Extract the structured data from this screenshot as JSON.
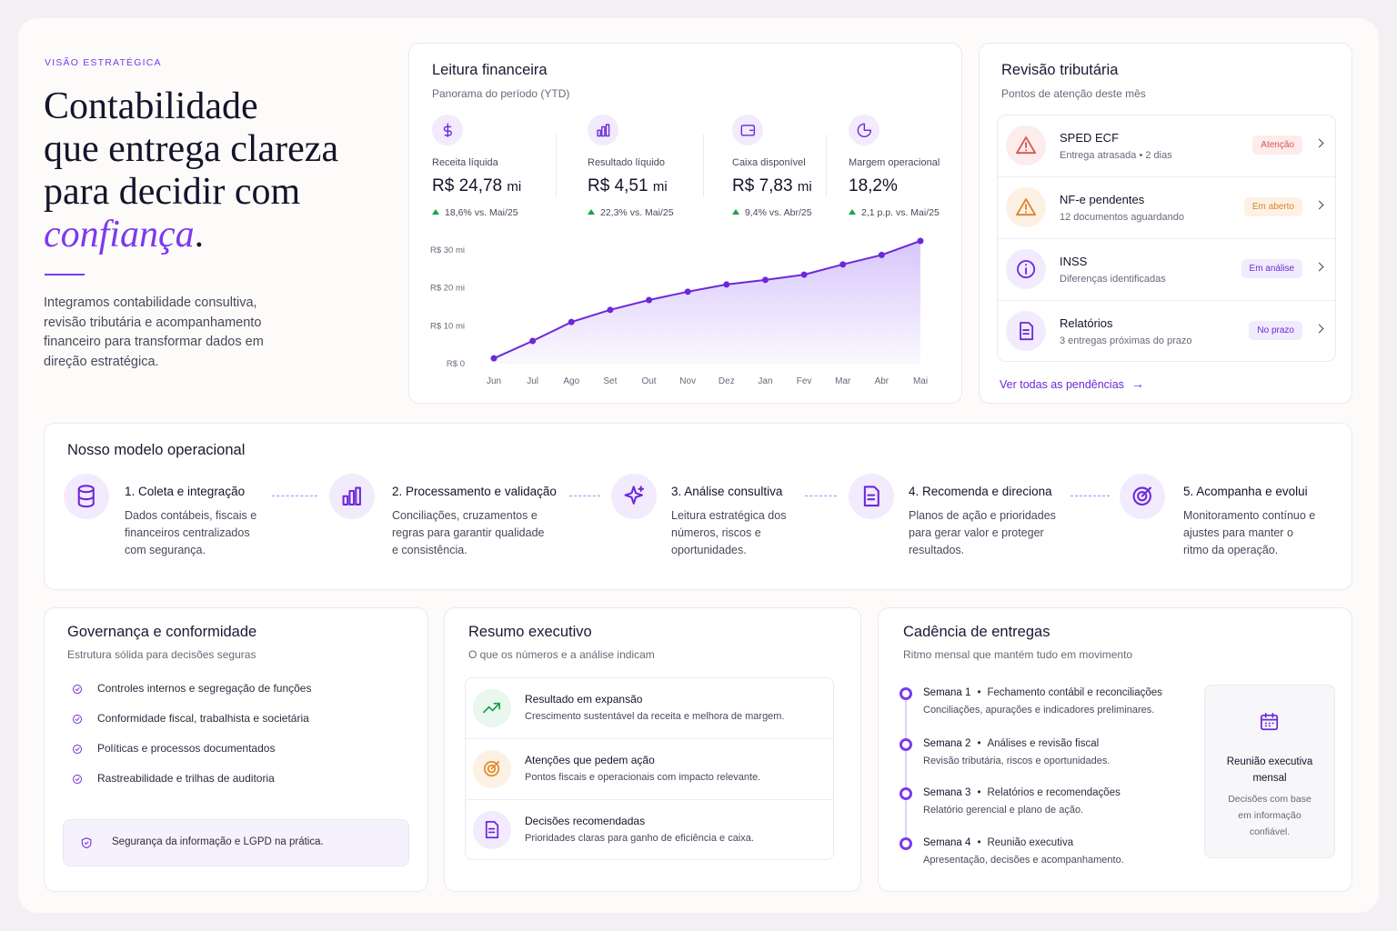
{
  "hero": {
    "kicker": "VISÃO ESTRATÉGICA",
    "title_lines": [
      "Contabilidade",
      "que entrega clareza",
      "para decidir com"
    ],
    "title_accent": "confiança",
    "title_end": ".",
    "body": "Integramos contabilidade consultiva, revisão tributária e acompanhamento financeiro para transformar dados em direção estratégica."
  },
  "finance": {
    "title": "Leitura financeira",
    "subtitle": "Panorama do período (YTD)",
    "kpis": [
      {
        "label": "Receita líquida",
        "value": "R$ 24,78",
        "unit": "mi",
        "delta": "18,6% vs. Mai/25"
      },
      {
        "label": "Resultado líquido",
        "value": "R$ 4,51",
        "unit": "mi",
        "delta": "22,3% vs. Mai/25"
      },
      {
        "label": "Caixa disponível",
        "value": "R$ 7,83",
        "unit": "mi",
        "delta": "9,4% vs. Abr/25"
      },
      {
        "label": "Margem operacional",
        "value": "18,2%",
        "unit": null,
        "delta": "2,1 p.p. vs. Mai/25"
      }
    ]
  },
  "chart_data": {
    "type": "line",
    "color": "#6d28d9",
    "categories": [
      "Jun",
      "Jul",
      "Ago",
      "Set",
      "Out",
      "Nov",
      "Dez",
      "Jan",
      "Fev",
      "Mar",
      "Abr",
      "Mai"
    ],
    "values": [
      1.4,
      6,
      11,
      14.2,
      16.8,
      19,
      20.9,
      22.1,
      23.5,
      26.2,
      28.7,
      32.4
    ],
    "ylim": [
      0,
      33
    ],
    "yticks": [
      {
        "value": 0,
        "label": "R$ 0"
      },
      {
        "value": 10,
        "label": "R$ 10 mi"
      },
      {
        "value": 20,
        "label": "R$ 20 mi"
      },
      {
        "value": 30,
        "label": "R$ 30 mi"
      }
    ],
    "area": true,
    "grid": false
  },
  "tax": {
    "title": "Revisão tributária",
    "subtitle": "Pontos de atenção deste mês",
    "items": [
      {
        "title": "SPED ECF",
        "detail": "Entrega atrasada • 2 dias",
        "status": "Atenção"
      },
      {
        "title": "NF-e pendentes",
        "detail": "12 documentos aguardando",
        "status": "Em aberto"
      },
      {
        "title": "INSS",
        "detail": "Diferenças identificadas",
        "status": "Em análise"
      },
      {
        "title": "Relatórios",
        "detail": "3 entregas próximas do prazo",
        "status": "No prazo"
      }
    ],
    "link": "Ver todas as pendências"
  },
  "model": {
    "title": "Nosso modelo operacional",
    "steps": [
      {
        "title": "1. Coleta e integração",
        "body": "Dados contábeis, fiscais e financeiros centralizados com segurança."
      },
      {
        "title": "2. Processamento e validação",
        "body": "Conciliações, cruzamentos e regras para garantir qualidade e consistência."
      },
      {
        "title": "3. Análise consultiva",
        "body": "Leitura estratégica dos números, riscos e oportunidades."
      },
      {
        "title": "4. Recomenda e direciona",
        "body": "Planos de ação e prioridades para gerar valor e proteger resultados."
      },
      {
        "title": "5. Acompanha e evolui",
        "body": "Monitoramento contínuo e ajustes para manter o ritmo da operação."
      }
    ]
  },
  "governance": {
    "title": "Governança e conformidade",
    "subtitle": "Estrutura sólida para decisões seguras",
    "items": [
      "Controles internos e segregação de funções",
      "Conformidade fiscal, trabalhista e societária",
      "Políticas e processos documentados",
      "Rastreabilidade e trilhas de auditoria"
    ],
    "note": "Segurança da informação e LGPD na prática."
  },
  "summary": {
    "title": "Resumo executivo",
    "subtitle": "O que os números e a análise indicam",
    "items": [
      {
        "title": "Resultado em expansão",
        "detail": "Crescimento sustentável da receita e melhora de margem."
      },
      {
        "title": "Atenções que pedem ação",
        "detail": "Pontos fiscais e operacionais com impacto relevante."
      },
      {
        "title": "Decisões recomendadas",
        "detail": "Prioridades claras para ganho de eficiência e caixa."
      }
    ]
  },
  "cadence": {
    "title": "Cadência de entregas",
    "subtitle": "Ritmo mensal que mantém tudo em movimento",
    "weeks": [
      {
        "week": "Semana 1",
        "topic": "Fechamento contábil e reconciliações",
        "detail": "Conciliações, apurações e indicadores preliminares."
      },
      {
        "week": "Semana 2",
        "topic": "Análises e revisão fiscal",
        "detail": "Revisão tributária, riscos e oportunidades."
      },
      {
        "week": "Semana 3",
        "topic": "Relatórios e recomendações",
        "detail": "Relatório gerencial e plano de ação."
      },
      {
        "week": "Semana 4",
        "topic": "Reunião executiva",
        "detail": "Apresentação, decisões e acompanhamento."
      }
    ],
    "meeting": {
      "title": "Reunião executiva mensal",
      "body": "Decisões com base em informação confiável."
    }
  }
}
